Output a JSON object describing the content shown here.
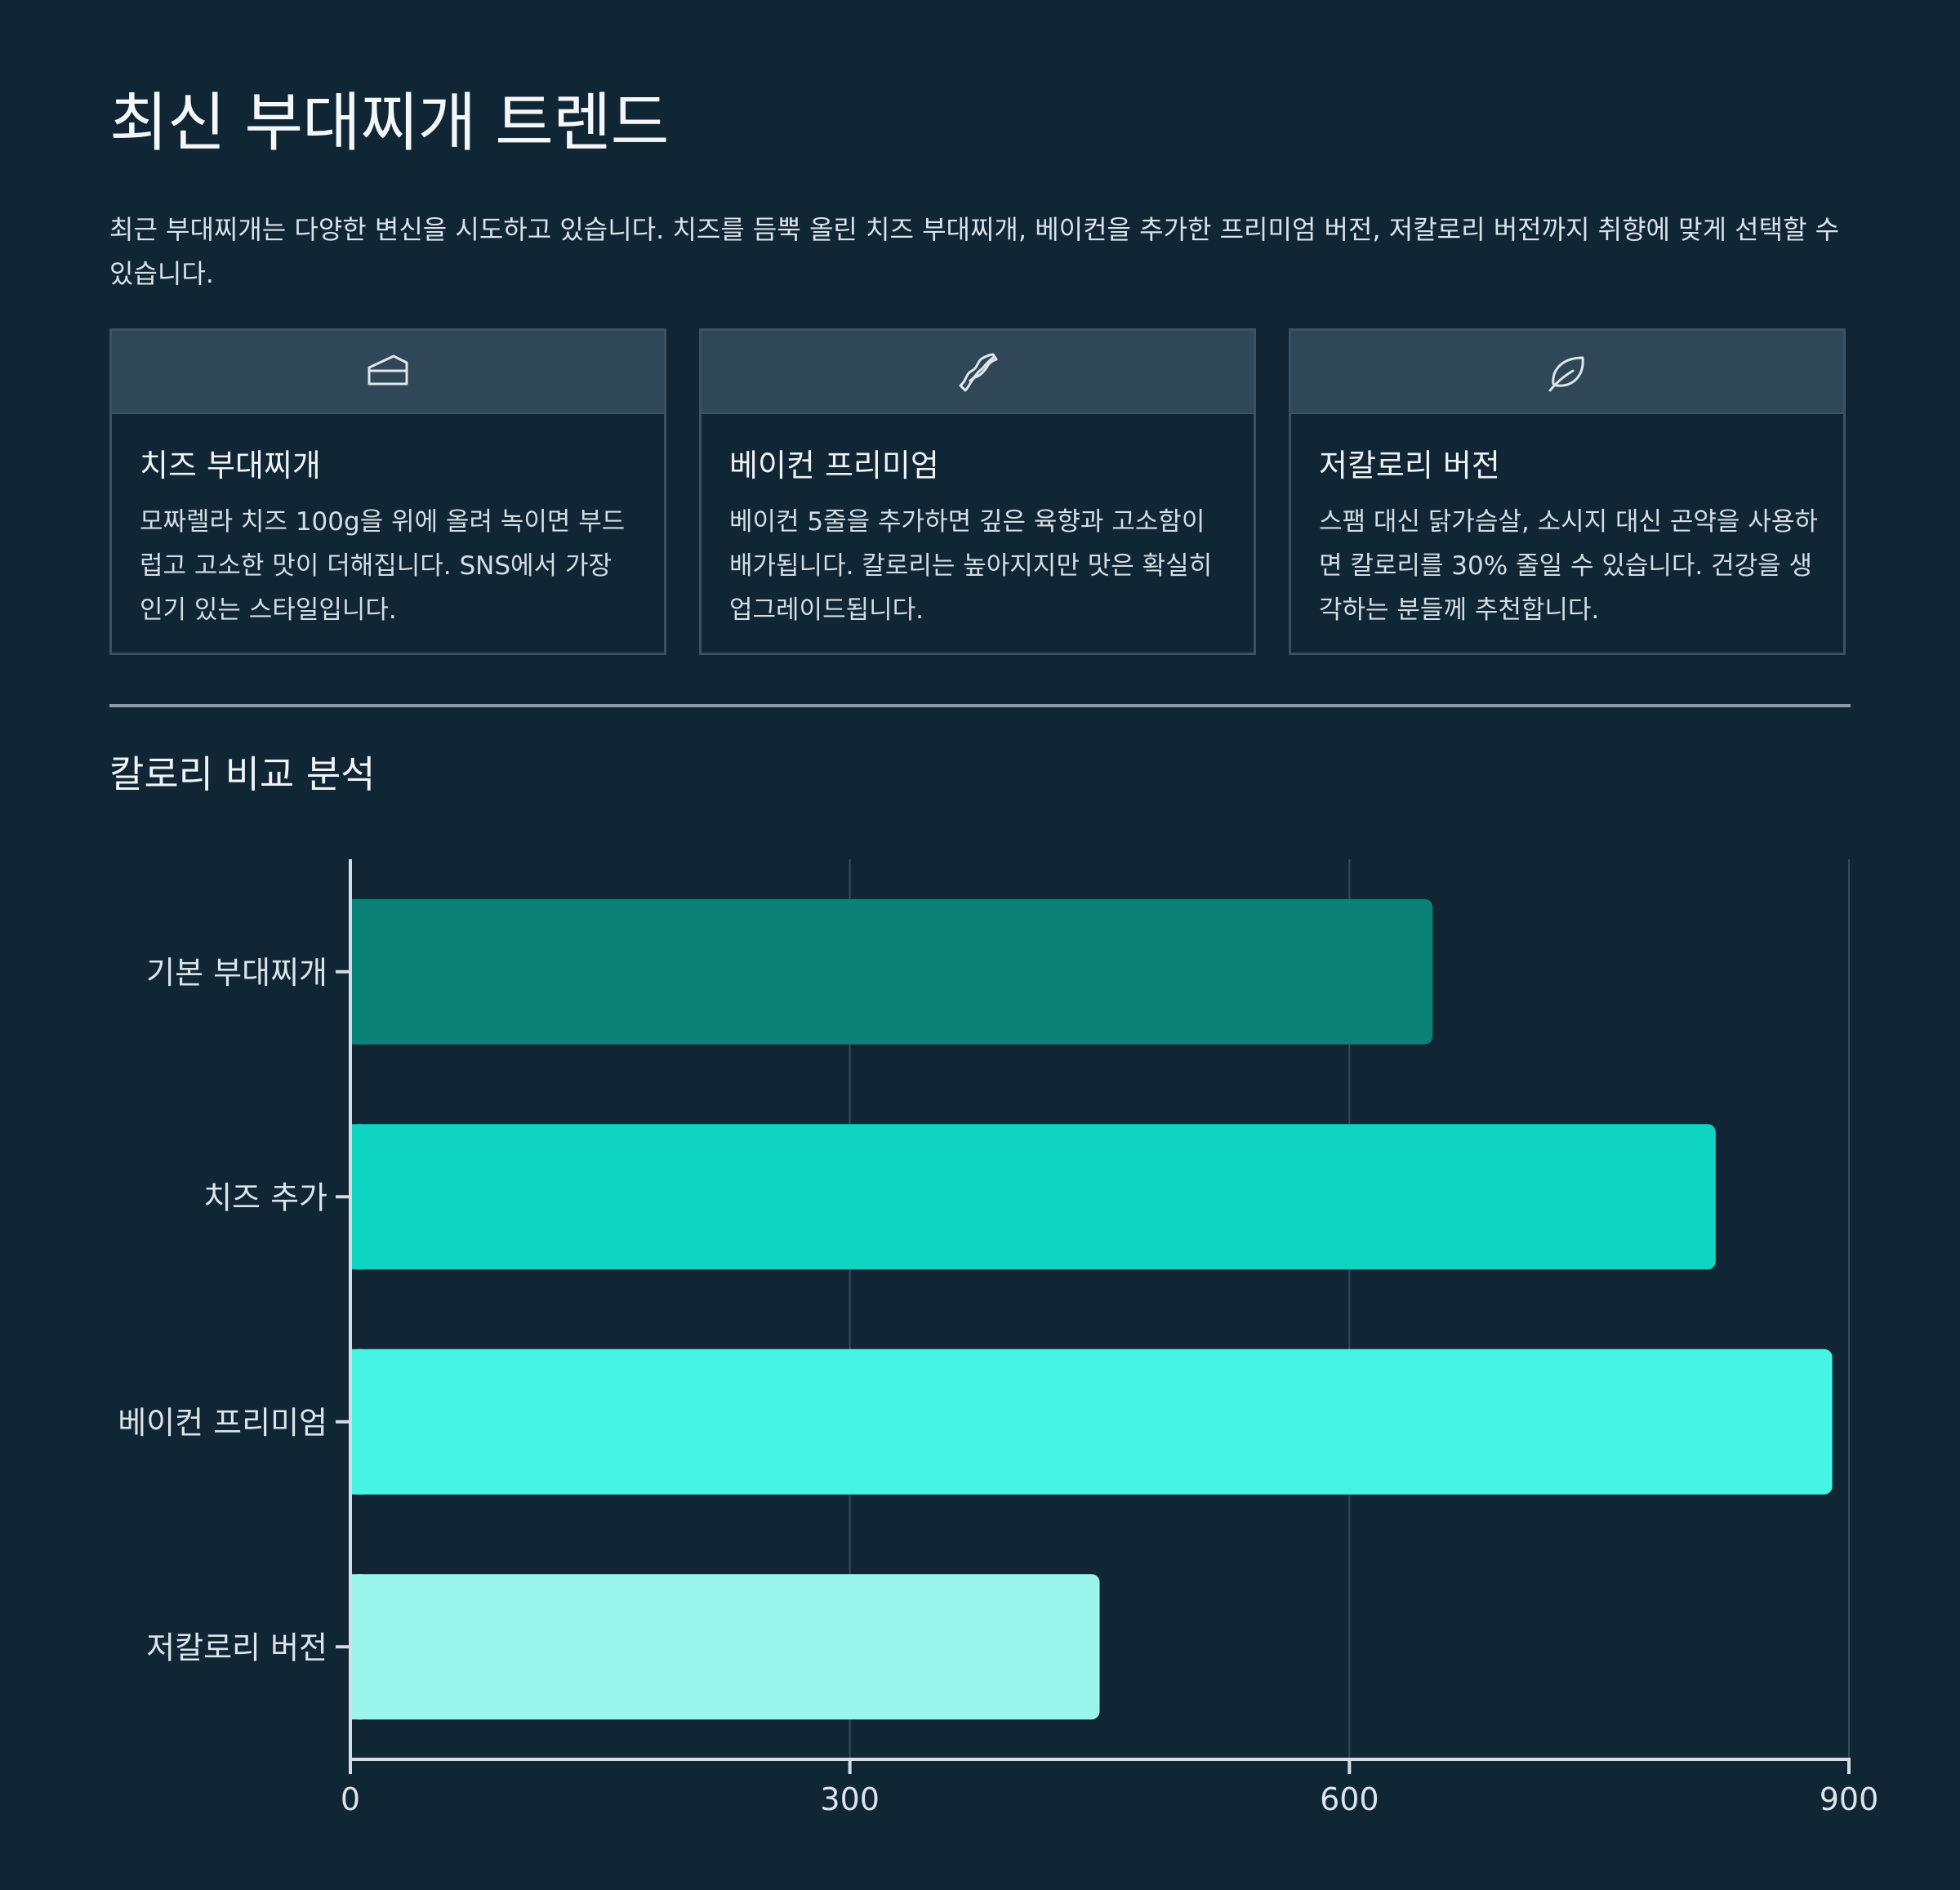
{
  "header": {
    "title": "최신 부대찌개 트렌드",
    "intro": "최근 부대찌개는 다양한 변신을 시도하고 있습니다. 치즈를 듬뿍 올린 치즈 부대찌개, 베이컨을 추가한 프리미엄 버전, 저칼로리 버전까지 취향에 맞게 선택할 수 있습니다."
  },
  "cards": [
    {
      "icon": "cheese-icon",
      "title": "치즈 부대찌개",
      "text": "모짜렐라 치즈 100g을 위에 올려 녹이면 부드럽고 고소한 맛이 더해집니다. SNS에서 가장 인기 있는 스타일입니다."
    },
    {
      "icon": "bacon-icon",
      "title": "베이컨 프리미엄",
      "text": "베이컨 5줄을 추가하면 깊은 육향과 고소함이 배가됩니다. 칼로리는 높아지지만 맛은 확실히 업그레이드됩니다."
    },
    {
      "icon": "leaf-icon",
      "title": "저칼로리 버전",
      "text": "스팸 대신 닭가슴살, 소시지 대신 곤약을 사용하면 칼로리를 30% 줄일 수 있습니다. 건강을 생각하는 분들께 추천합니다."
    }
  ],
  "section_title": "칼로리 비교 분석",
  "chart_data": {
    "type": "bar",
    "orientation": "horizontal",
    "categories": [
      "기본 부대찌개",
      "치즈 추가",
      "베이컨 프리미엄",
      "저칼로리 버전"
    ],
    "values": [
      650,
      820,
      890,
      450
    ],
    "colors": [
      "#0b8276",
      "#0fd4c2",
      "#45f4e3",
      "#9af6ec"
    ],
    "xlim": [
      0,
      900
    ],
    "xticks": [
      0,
      300,
      600,
      900
    ],
    "grid": true,
    "legend": "none",
    "title": "",
    "xlabel": "",
    "ylabel": ""
  }
}
